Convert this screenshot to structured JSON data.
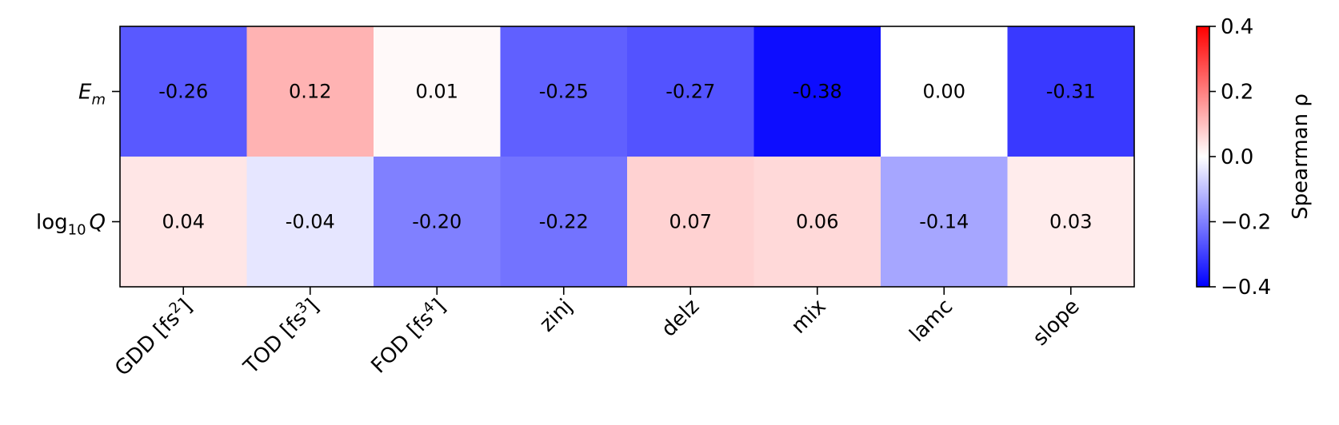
{
  "chart_data": {
    "type": "heatmap",
    "rows": [
      {
        "label_main": "E",
        "label_sub": "m",
        "label_prefix": "",
        "label_suffix": ""
      },
      {
        "label_main": "Q",
        "label_sub": "10",
        "label_prefix": "log",
        "label_suffix": ""
      }
    ],
    "columns": [
      {
        "text": "GDD [fs",
        "sup": "2",
        "tail": "]"
      },
      {
        "text": "TOD [fs",
        "sup": "3",
        "tail": "]"
      },
      {
        "text": "FOD [fs",
        "sup": "4",
        "tail": "]"
      },
      {
        "text": "zinj",
        "sup": "",
        "tail": ""
      },
      {
        "text": "delz",
        "sup": "",
        "tail": ""
      },
      {
        "text": "mix",
        "sup": "",
        "tail": ""
      },
      {
        "text": "lamc",
        "sup": "",
        "tail": ""
      },
      {
        "text": "slope",
        "sup": "",
        "tail": ""
      }
    ],
    "values": [
      [
        -0.26,
        0.12,
        0.01,
        -0.25,
        -0.27,
        -0.38,
        0.0,
        -0.31
      ],
      [
        0.04,
        -0.04,
        -0.2,
        -0.22,
        0.07,
        0.06,
        -0.14,
        0.03
      ]
    ],
    "value_labels": [
      [
        "-0.26",
        "0.12",
        "0.01",
        "-0.25",
        "-0.27",
        "-0.38",
        "0.00",
        "-0.31"
      ],
      [
        "0.04",
        "-0.04",
        "-0.20",
        "-0.22",
        "0.07",
        "0.06",
        "-0.14",
        "0.03"
      ]
    ],
    "colormap": "bwr",
    "vmin": -0.4,
    "vmax": 0.4,
    "colorbar": {
      "label": "Spearman ρ",
      "ticks": [
        0.4,
        0.2,
        0.0,
        -0.2,
        -0.4
      ],
      "tick_labels": [
        "0.4",
        "0.2",
        "0.0",
        "−0.2",
        "−0.4"
      ],
      "color_high": "#ff0000",
      "color_mid": "#ffffff",
      "color_low": "#0000ff"
    },
    "grid": false
  }
}
